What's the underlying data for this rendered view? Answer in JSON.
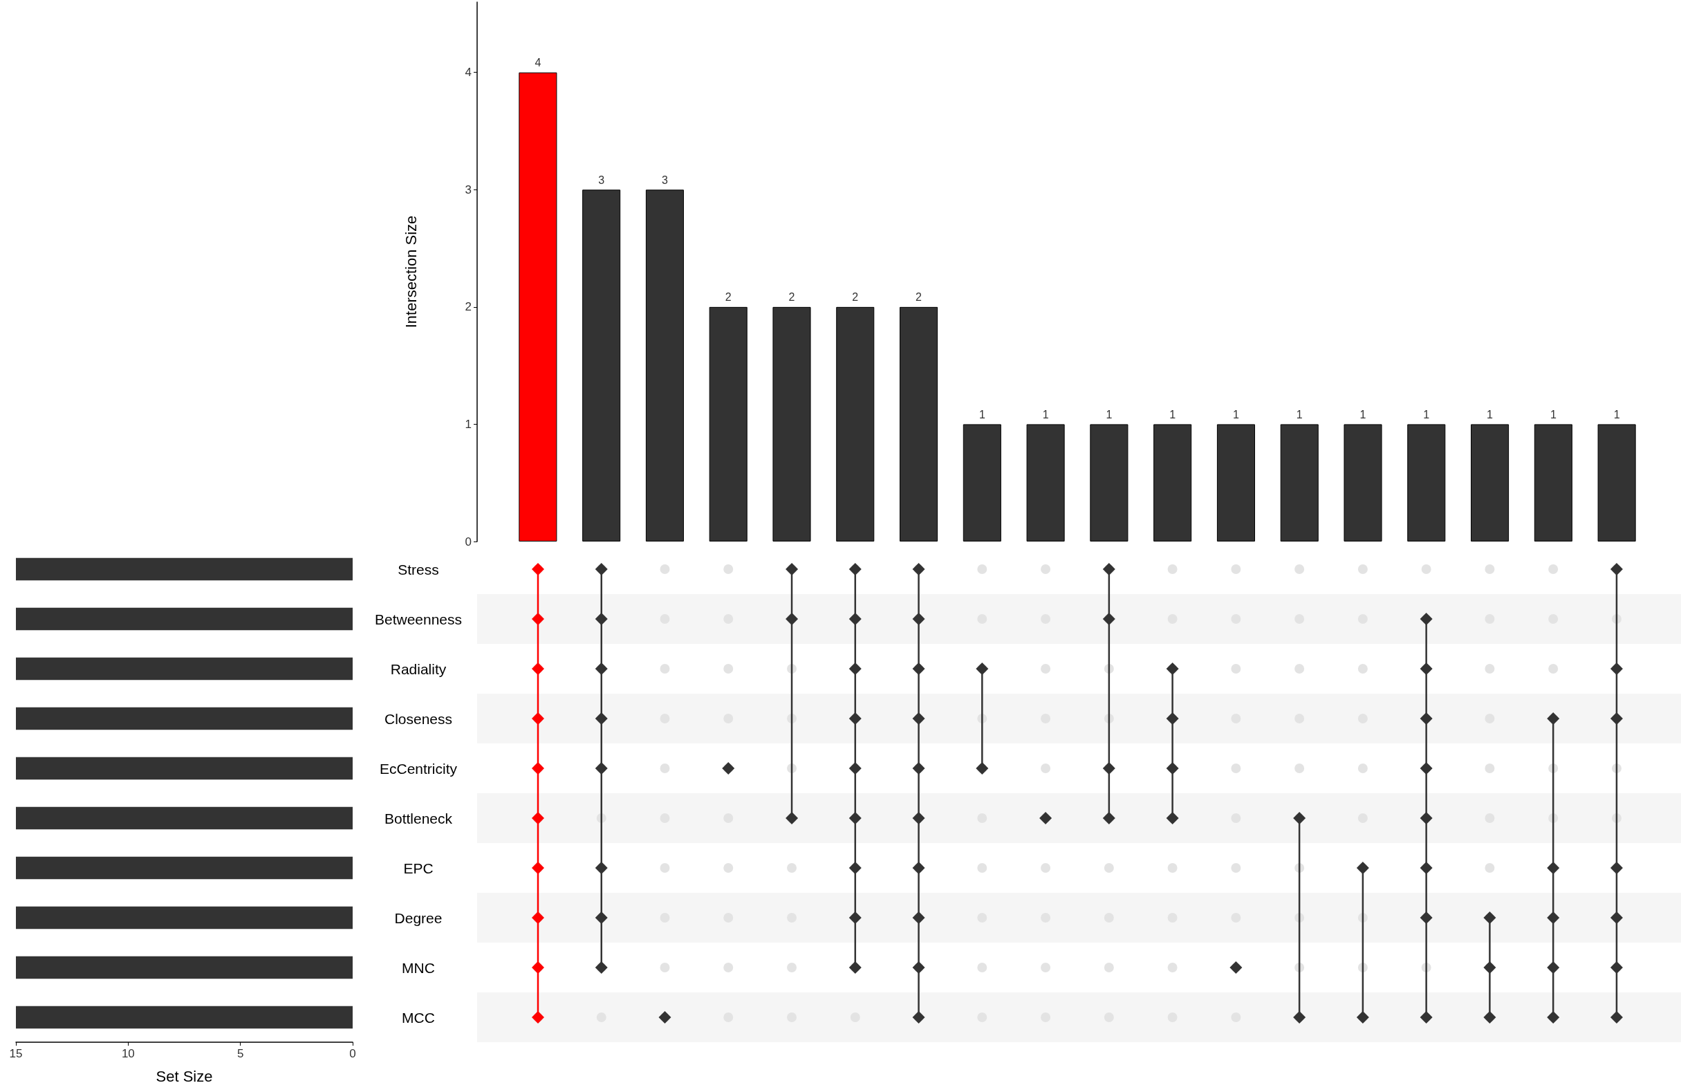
{
  "chart_data": [
    {
      "type": "bar",
      "ylabel": "Intersection Size",
      "categories": [
        null,
        null,
        null,
        null,
        null,
        null,
        null,
        null,
        null,
        null,
        null,
        null,
        null,
        null,
        null,
        null,
        null,
        null
      ],
      "values": [
        4,
        3,
        3,
        2,
        2,
        2,
        2,
        1,
        1,
        1,
        1,
        1,
        1,
        1,
        1,
        1,
        1,
        1
      ],
      "colors": [
        "#ff0000",
        "#333333",
        "#333333",
        "#333333",
        "#333333",
        "#333333",
        "#333333",
        "#333333",
        "#333333",
        "#333333",
        "#333333",
        "#333333",
        "#333333",
        "#333333",
        "#333333",
        "#333333",
        "#333333",
        "#333333"
      ],
      "ylim": [
        0,
        4.6
      ],
      "yticks": [
        0,
        1,
        2,
        3,
        4
      ],
      "data_labels": true
    },
    {
      "type": "bar",
      "orientation": "horizontal",
      "xlabel": "Set Size",
      "categories": [
        "Stress",
        "Betweenness",
        "Radiality",
        "Closeness",
        "EcCentricity",
        "Bottleneck",
        "EPC",
        "Degree",
        "MNC",
        "MCC"
      ],
      "values": [
        15,
        15,
        15,
        15,
        15,
        15,
        15,
        15,
        15,
        15
      ],
      "color": "#333333",
      "xlim": [
        15,
        0
      ],
      "xticks": [
        15,
        10,
        5,
        0
      ]
    }
  ]
}
